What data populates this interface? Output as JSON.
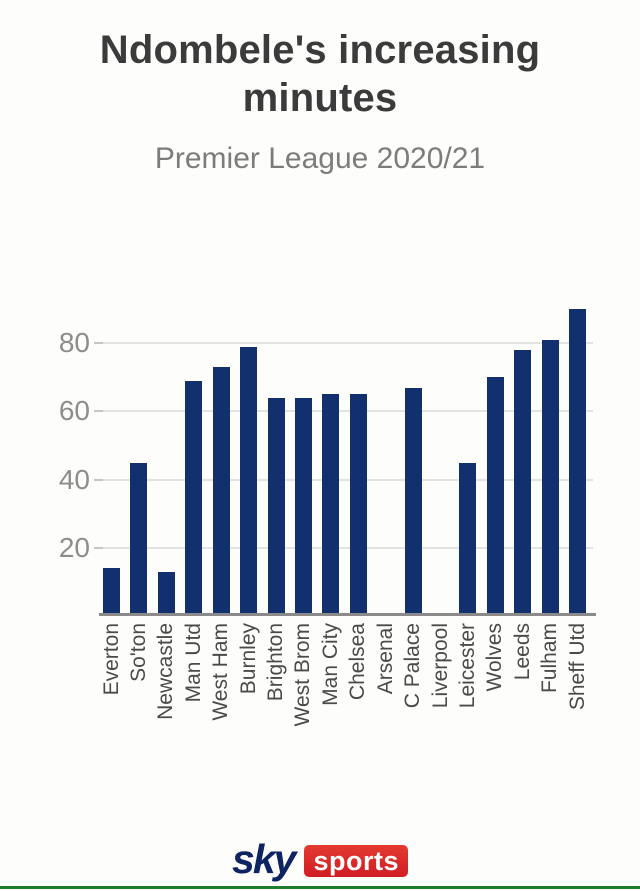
{
  "header": {
    "title": "Ndombele's increasing minutes",
    "subtitle": "Premier League 2020/21"
  },
  "chart_data": {
    "type": "bar",
    "title": "Ndombele's increasing minutes",
    "subtitle": "Premier League 2020/21",
    "categories": [
      "Everton",
      "So'ton",
      "Newcastle",
      "Man Utd",
      "West Ham",
      "Burnley",
      "Brighton",
      "West Brom",
      "Man City",
      "Chelsea",
      "Arsenal",
      "C Palace",
      "Liverpool",
      "Leicester",
      "Wolves",
      "Leeds",
      "Fulham",
      "Sheff Utd"
    ],
    "values": [
      14,
      45,
      13,
      69,
      73,
      79,
      64,
      64,
      65,
      65,
      0,
      67,
      0,
      45,
      70,
      78,
      81,
      90
    ],
    "xlabel": "",
    "ylabel": "",
    "ylim": [
      0,
      92
    ],
    "yticks": [
      20,
      40,
      60,
      80
    ],
    "grid": true,
    "legend": "none",
    "bar_color": "#13306e",
    "gridline_color": "#e3e3e1",
    "axis_line_color": "#8a8a8a",
    "ytick_color": "#8d8d8d",
    "xtick_color": "#4a4a4a"
  },
  "footer": {
    "logo": {
      "sky_label": "sky",
      "sports_label": "sports",
      "sky_navy": "#0e2361",
      "sports_red_top": "#e43a30",
      "sports_red_bottom": "#d01d24"
    },
    "bottom_line_green": "#1e7c2c"
  },
  "colors": {
    "background": "#fdfdfb",
    "title_text": "#3b3b3b",
    "subtitle_text": "#7c7c7c"
  }
}
